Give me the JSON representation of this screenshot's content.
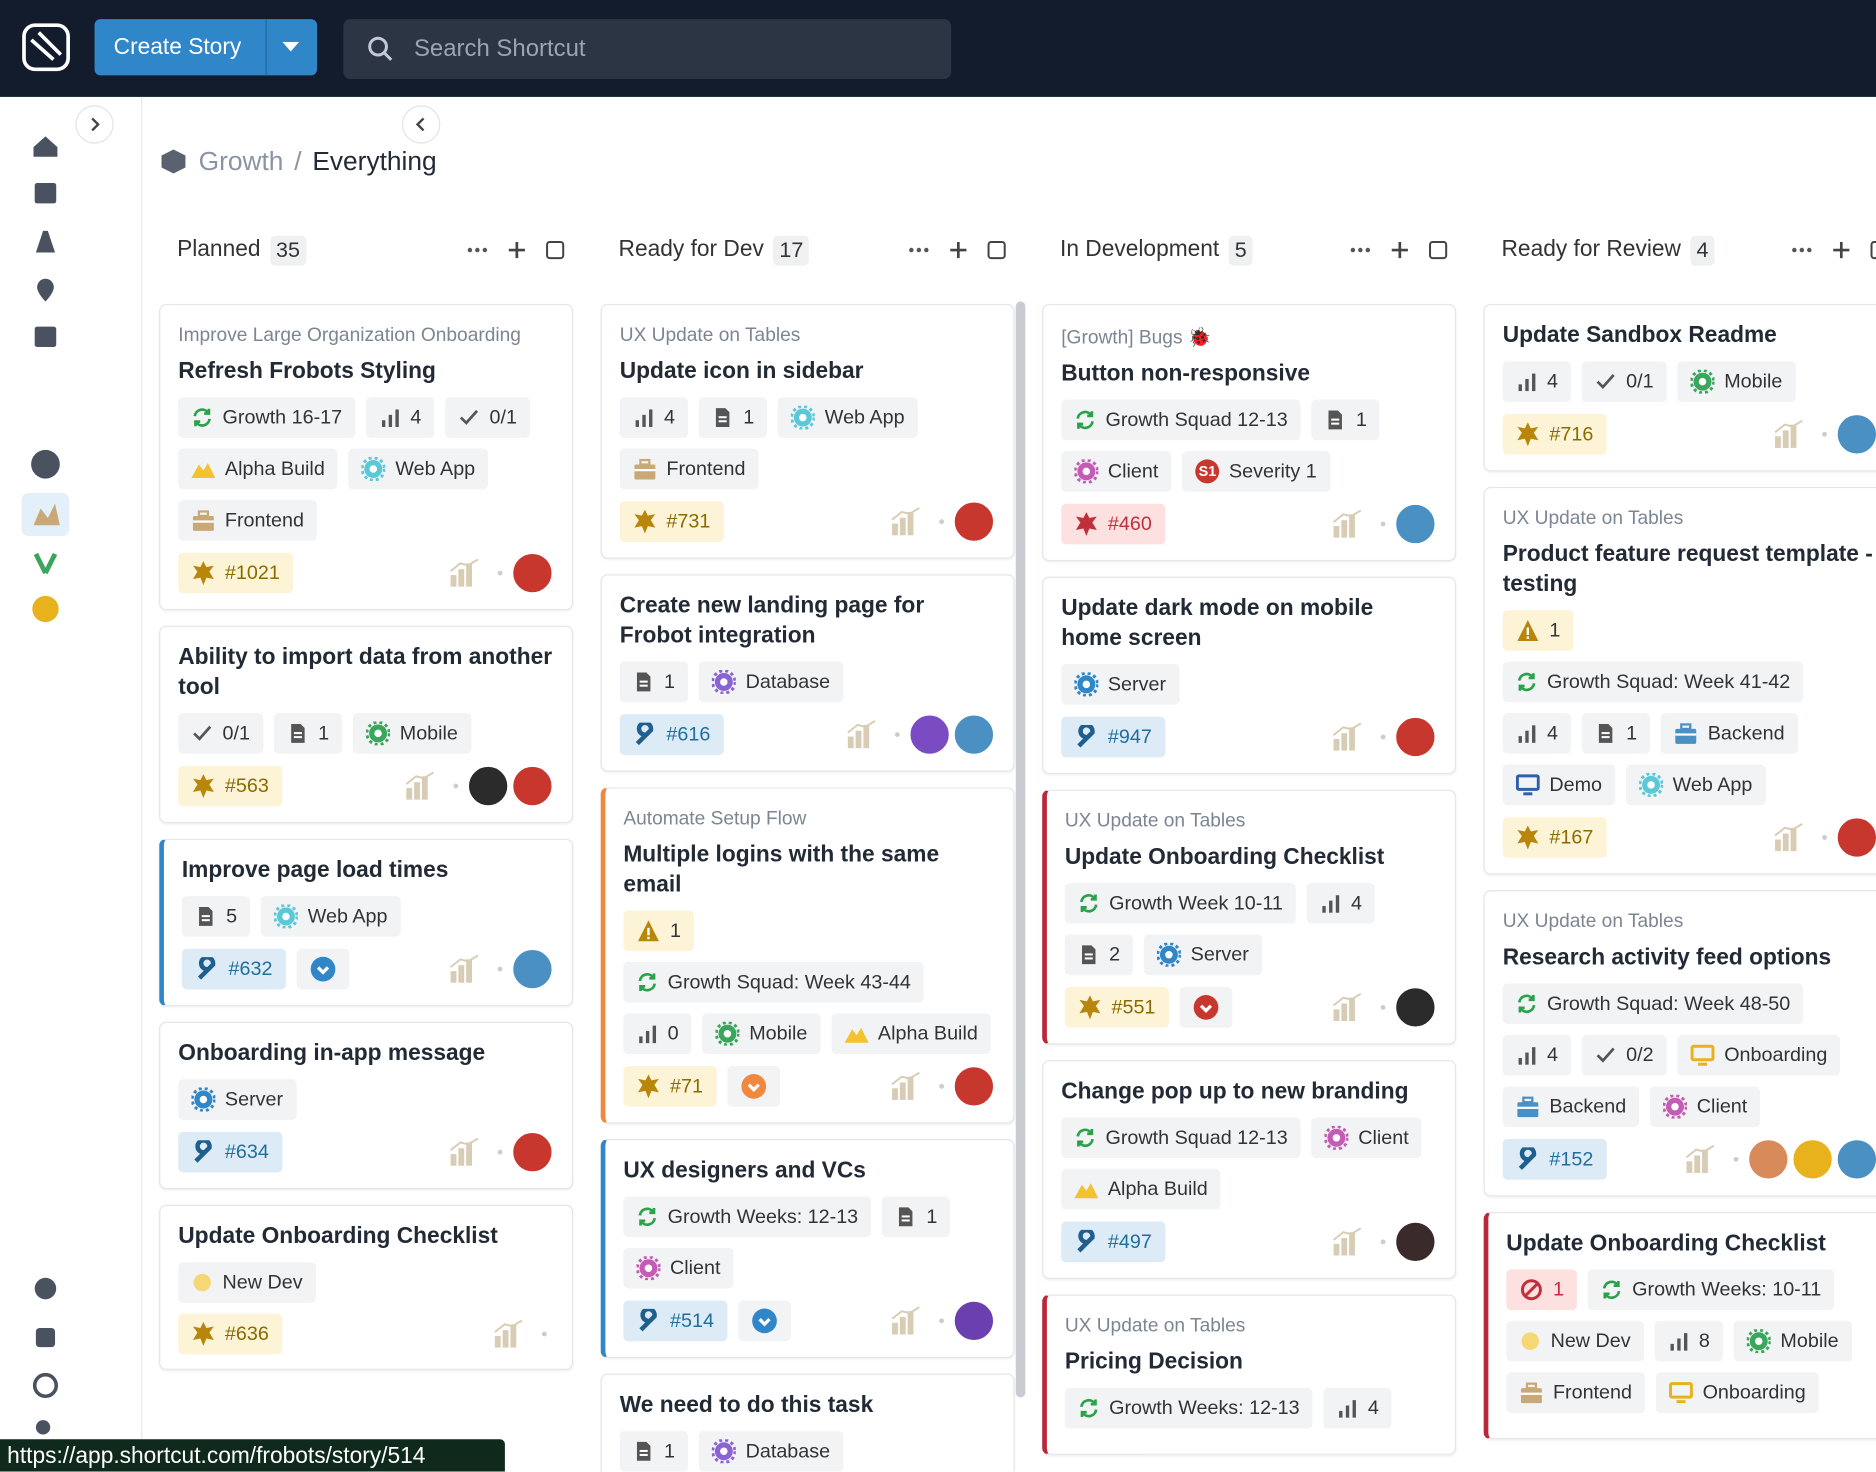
{
  "topbar": {
    "create_button": "Create Story",
    "search_placeholder": "Search Shortcut"
  },
  "breadcrumb": {
    "parent": "Growth",
    "separator": "/",
    "current": "Everything"
  },
  "columns": [
    {
      "name": "Planned",
      "count": 35,
      "cards": [
        {
          "epic": "Improve Large Organization Onboarding",
          "title": "Refresh Frobots Styling",
          "chip_rows": [
            [
              {
                "kind": "iteration",
                "text": "Growth 16-17"
              },
              {
                "kind": "estimate",
                "text": "4"
              },
              {
                "kind": "tasks",
                "text": "0/1"
              }
            ],
            [
              {
                "kind": "milestone",
                "text": "Alpha Build"
              },
              {
                "kind": "label",
                "color": "#5bc8d8",
                "text": "Web App"
              }
            ],
            [
              {
                "kind": "box",
                "color": "#c9a878",
                "text": "Frontend"
              }
            ]
          ],
          "id": "#1021",
          "story_type": "feature",
          "avatars": [
            "#c8372d"
          ]
        },
        {
          "title": "Ability to import data from another tool",
          "chip_rows": [
            [
              {
                "kind": "tasks",
                "text": "0/1"
              },
              {
                "kind": "docs",
                "text": "1"
              },
              {
                "kind": "label",
                "color": "#3aa65b",
                "text": "Mobile"
              }
            ]
          ],
          "id": "#563",
          "story_type": "feature",
          "avatars": [
            "#2b2b2b",
            "#c8372d"
          ]
        },
        {
          "accent": "#2f86c8",
          "title": "Improve page load times",
          "chip_rows": [
            [
              {
                "kind": "docs",
                "text": "5"
              },
              {
                "kind": "label",
                "color": "#5bc8d8",
                "text": "Web App"
              }
            ]
          ],
          "id": "#632",
          "story_type": "chore",
          "extra_color": "#2f86c8",
          "avatars": [
            "#4a90c2"
          ]
        },
        {
          "title": "Onboarding in-app message",
          "chip_rows": [
            [
              {
                "kind": "label",
                "color": "#2f86c8",
                "text": "Server"
              }
            ]
          ],
          "id": "#634",
          "story_type": "chore",
          "avatars": [
            "#c8372d"
          ]
        },
        {
          "title": "Update Onboarding Checklist",
          "chip_rows": [
            [
              {
                "kind": "state",
                "text": "New Dev"
              }
            ]
          ],
          "id": "#636",
          "story_type": "feature",
          "avatars": []
        }
      ]
    },
    {
      "name": "Ready for Dev",
      "count": 17,
      "cards": [
        {
          "epic": "UX Update on Tables",
          "title": "Update icon in sidebar",
          "chip_rows": [
            [
              {
                "kind": "estimate",
                "text": "4"
              },
              {
                "kind": "docs",
                "text": "1"
              },
              {
                "kind": "label",
                "color": "#5bc8d8",
                "text": "Web App"
              }
            ],
            [
              {
                "kind": "box",
                "color": "#c9a878",
                "text": "Frontend"
              }
            ]
          ],
          "id": "#731",
          "story_type": "feature",
          "avatars": [
            "#c8372d"
          ]
        },
        {
          "title": "Create new landing page for Frobot integration",
          "chip_rows": [
            [
              {
                "kind": "docs",
                "text": "1"
              },
              {
                "kind": "label",
                "color": "#8a63d2",
                "text": "Database"
              }
            ]
          ],
          "id": "#616",
          "story_type": "chore",
          "avatars": [
            "#7b4bc4",
            "#4a90c2"
          ]
        },
        {
          "accent": "#f0883e",
          "epic": "Automate Setup Flow",
          "title": "Multiple logins with the same email",
          "chip_rows": [
            [
              {
                "kind": "warning",
                "text": "1"
              }
            ],
            [
              {
                "kind": "iteration",
                "text": "Growth Squad: Week 43-44"
              }
            ],
            [
              {
                "kind": "estimate",
                "text": "0"
              },
              {
                "kind": "label",
                "color": "#3aa65b",
                "text": "Mobile"
              },
              {
                "kind": "milestone",
                "text": "Alpha Build"
              }
            ]
          ],
          "id": "#71",
          "story_type": "feature",
          "extra_color": "#f0883e",
          "avatars": [
            "#c8372d"
          ]
        },
        {
          "accent": "#2f86c8",
          "title": "UX designers and VCs",
          "chip_rows": [
            [
              {
                "kind": "iteration",
                "text": "Growth Weeks: 12-13"
              },
              {
                "kind": "docs",
                "text": "1"
              }
            ],
            [
              {
                "kind": "label",
                "color": "#c45bb4",
                "text": "Client"
              }
            ]
          ],
          "id": "#514",
          "story_type": "chore",
          "extra_color": "#2f86c8",
          "avatars": [
            "#6a3fb0"
          ]
        },
        {
          "title": "We need to do this task",
          "chip_rows": [
            [
              {
                "kind": "docs",
                "text": "1"
              },
              {
                "kind": "label",
                "color": "#8a63d2",
                "text": "Database"
              }
            ]
          ]
        }
      ]
    },
    {
      "name": "In Development",
      "count": 5,
      "cards": [
        {
          "epic": "[Growth] Bugs 🐞",
          "title": "Button non-responsive",
          "chip_rows": [
            [
              {
                "kind": "iteration",
                "text": "Growth Squad 12-13"
              },
              {
                "kind": "docs",
                "text": "1"
              }
            ],
            [
              {
                "kind": "label",
                "color": "#c45bb4",
                "text": "Client"
              },
              {
                "kind": "severity",
                "badge": "S1",
                "text": "Severity 1"
              }
            ]
          ],
          "id": "#460",
          "story_type": "bug",
          "avatars": [
            "#4a90c2"
          ]
        },
        {
          "title": "Update dark mode on mobile home screen",
          "chip_rows": [
            [
              {
                "kind": "label",
                "color": "#2f86c8",
                "text": "Server"
              }
            ]
          ],
          "id": "#947",
          "story_type": "chore",
          "avatars": [
            "#c8372d"
          ]
        },
        {
          "accent": "#b8283a",
          "epic": "UX Update on Tables",
          "title": "Update Onboarding Checklist",
          "chip_rows": [
            [
              {
                "kind": "iteration",
                "text": "Growth Week 10-11"
              },
              {
                "kind": "estimate",
                "text": "4"
              }
            ],
            [
              {
                "kind": "docs",
                "text": "2"
              },
              {
                "kind": "label",
                "color": "#2f86c8",
                "text": "Server"
              }
            ]
          ],
          "id": "#551",
          "story_type": "feature",
          "extra_color": "#c8372d",
          "avatars": [
            "#2b2b2b"
          ]
        },
        {
          "title": "Change pop up to new branding",
          "chip_rows": [
            [
              {
                "kind": "iteration",
                "text": "Growth Squad 12-13"
              },
              {
                "kind": "label",
                "color": "#c45bb4",
                "text": "Client"
              }
            ],
            [
              {
                "kind": "milestone",
                "text": "Alpha Build"
              }
            ]
          ],
          "id": "#497",
          "story_type": "chore",
          "avatars": [
            "#3a2a2a"
          ]
        },
        {
          "accent": "#b8283a",
          "epic": "UX Update on Tables",
          "title": "Pricing Decision",
          "chip_rows": [
            [
              {
                "kind": "iteration",
                "text": "Growth Weeks: 12-13"
              },
              {
                "kind": "estimate",
                "text": "4"
              }
            ]
          ]
        }
      ]
    },
    {
      "name": "Ready for Review",
      "count": 4,
      "cards": [
        {
          "title": "Update Sandbox Readme",
          "chip_rows": [
            [
              {
                "kind": "estimate",
                "text": "4"
              },
              {
                "kind": "tasks",
                "text": "0/1"
              },
              {
                "kind": "label",
                "color": "#3aa65b",
                "text": "Mobile"
              }
            ]
          ],
          "id": "#716",
          "story_type": "feature",
          "avatars": [
            "#4a90c2"
          ]
        },
        {
          "epic": "UX Update on Tables",
          "title": "Product feature request template - testing",
          "chip_rows": [
            [
              {
                "kind": "warning",
                "text": "1"
              }
            ],
            [
              {
                "kind": "iteration",
                "text": "Growth Squad: Week 41-42"
              }
            ],
            [
              {
                "kind": "estimate",
                "text": "4"
              },
              {
                "kind": "docs",
                "text": "1"
              },
              {
                "kind": "box",
                "color": "#4a90c2",
                "text": "Backend"
              }
            ],
            [
              {
                "kind": "monitor",
                "color": "#2f5fa8",
                "text": "Demo"
              },
              {
                "kind": "label",
                "color": "#5bc8d8",
                "text": "Web App"
              }
            ]
          ],
          "id": "#167",
          "story_type": "feature",
          "avatars": [
            "#c8372d"
          ]
        },
        {
          "epic": "UX Update on Tables",
          "title": "Research activity feed options",
          "chip_rows": [
            [
              {
                "kind": "iteration",
                "text": "Growth Squad: Week 48-50"
              }
            ],
            [
              {
                "kind": "estimate",
                "text": "4"
              },
              {
                "kind": "tasks",
                "text": "0/2"
              },
              {
                "kind": "monitor",
                "color": "#e8b21c",
                "text": "Onboarding"
              }
            ],
            [
              {
                "kind": "box",
                "color": "#4a90c2",
                "text": "Backend"
              },
              {
                "kind": "label",
                "color": "#c45bb4",
                "text": "Client"
              }
            ]
          ],
          "id": "#152",
          "story_type": "chore",
          "avatars": [
            "#d98a5a",
            "#e8b21c",
            "#4a90c2"
          ]
        },
        {
          "accent": "#b8283a",
          "title": "Update Onboarding Checklist",
          "chip_rows": [
            [
              {
                "kind": "blocked",
                "text": "1"
              },
              {
                "kind": "iteration",
                "text": "Growth Weeks: 10-11"
              }
            ],
            [
              {
                "kind": "state",
                "text": "New Dev"
              },
              {
                "kind": "estimate",
                "text": "8"
              },
              {
                "kind": "label",
                "color": "#3aa65b",
                "text": "Mobile"
              }
            ],
            [
              {
                "kind": "box",
                "color": "#c9a878",
                "text": "Frontend"
              },
              {
                "kind": "monitor",
                "color": "#e8b21c",
                "text": "Onboarding"
              }
            ]
          ]
        }
      ]
    }
  ],
  "status_url": "https://app.shortcut.com/frobots/story/514"
}
